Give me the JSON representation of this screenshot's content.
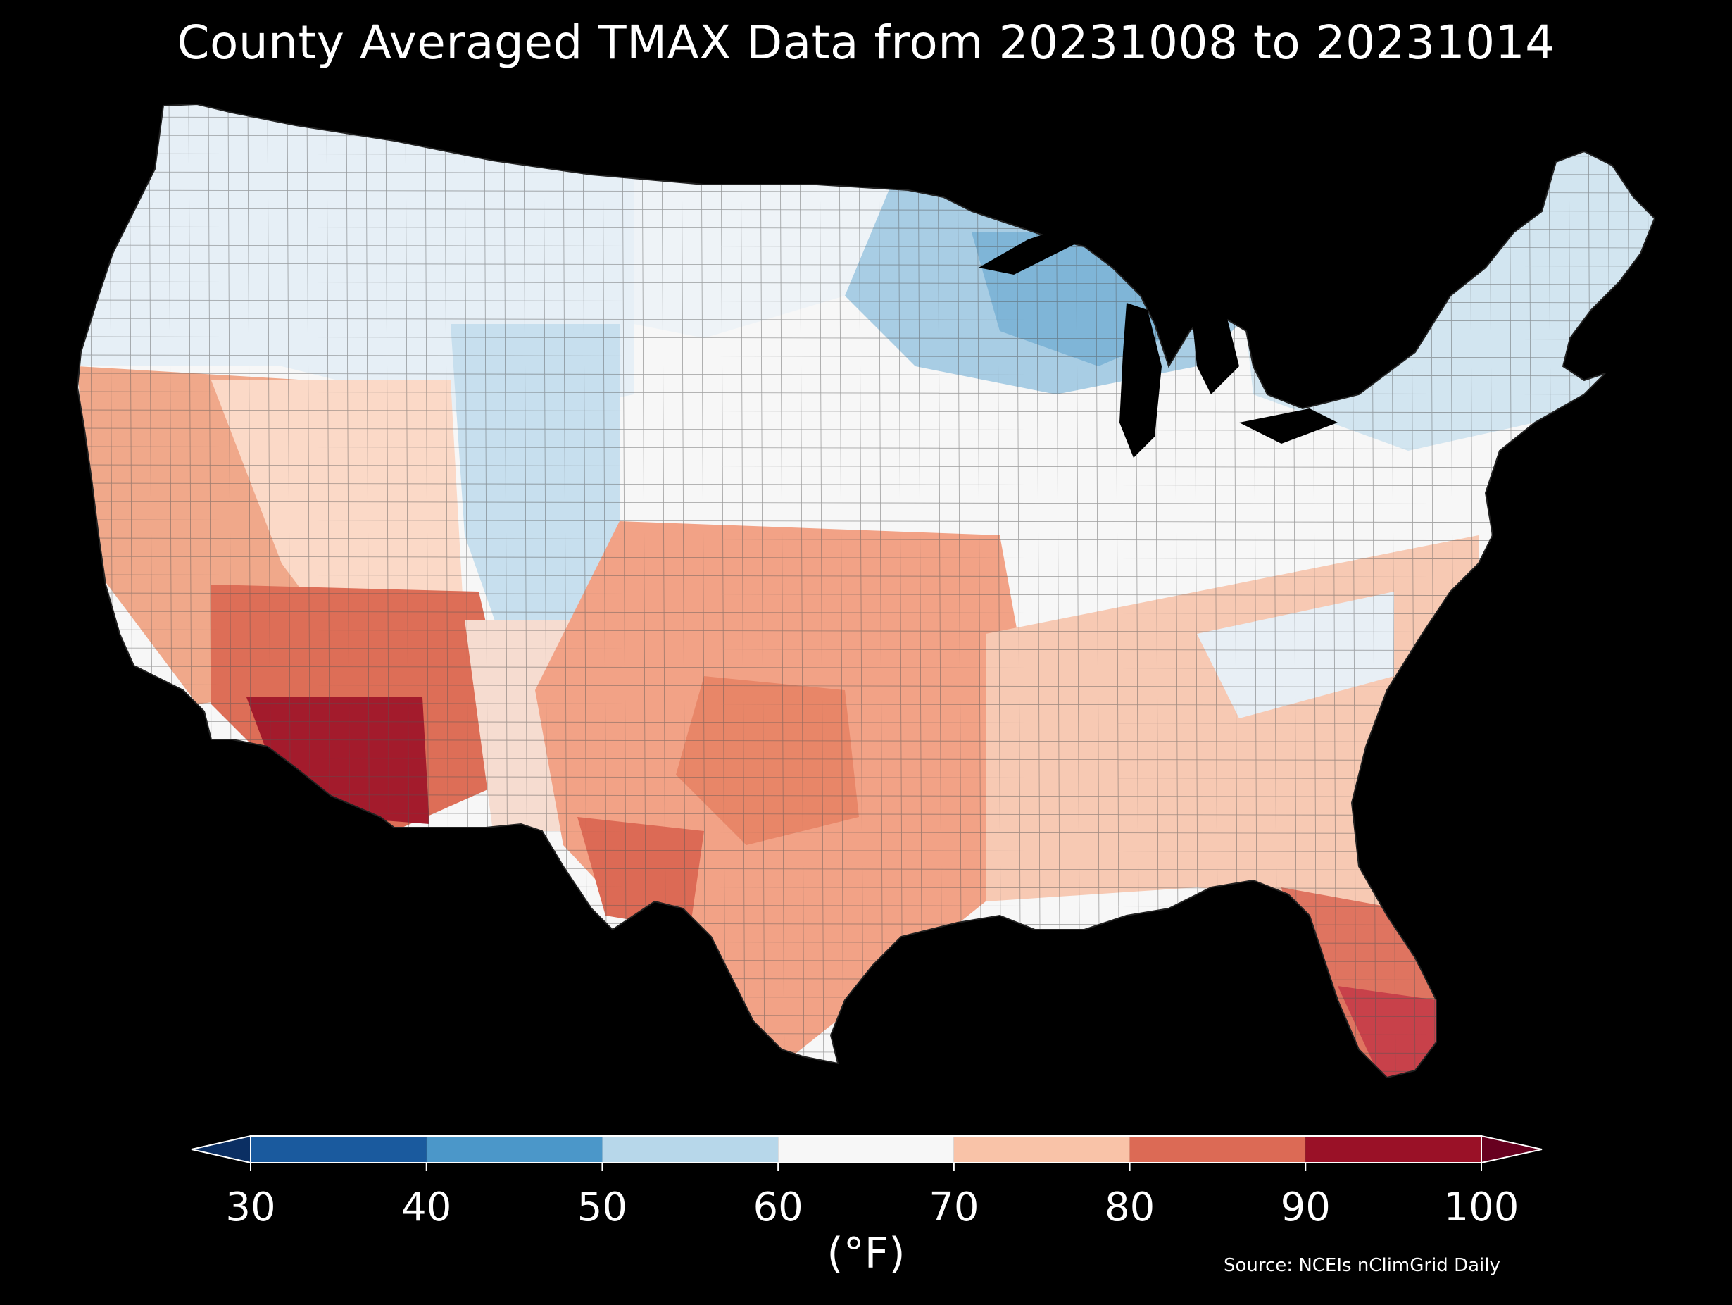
{
  "title": "County Averaged TMAX Data from 20231008 to 20231014",
  "colorbar": {
    "ticks": [
      "30",
      "40",
      "50",
      "60",
      "70",
      "80",
      "90",
      "100"
    ],
    "bins": [
      {
        "min": 30,
        "max": 40,
        "color": "#1a5a9e"
      },
      {
        "min": 40,
        "max": 50,
        "color": "#4b97c9"
      },
      {
        "min": 50,
        "max": 60,
        "color": "#b7d7ea"
      },
      {
        "min": 60,
        "max": 70,
        "color": "#f7f7f7"
      },
      {
        "min": 70,
        "max": 80,
        "color": "#f9c3a8"
      },
      {
        "min": 80,
        "max": 90,
        "color": "#dc6a55"
      },
      {
        "min": 90,
        "max": 100,
        "color": "#9a1127"
      }
    ],
    "extend_low_color": "#0b2f63",
    "extend_high_color": "#67001f",
    "unit": "(°F)"
  },
  "source": "Source: NCEIs nClimGrid Daily",
  "colors": {
    "background": "#000000",
    "text": "#ffffff"
  }
}
